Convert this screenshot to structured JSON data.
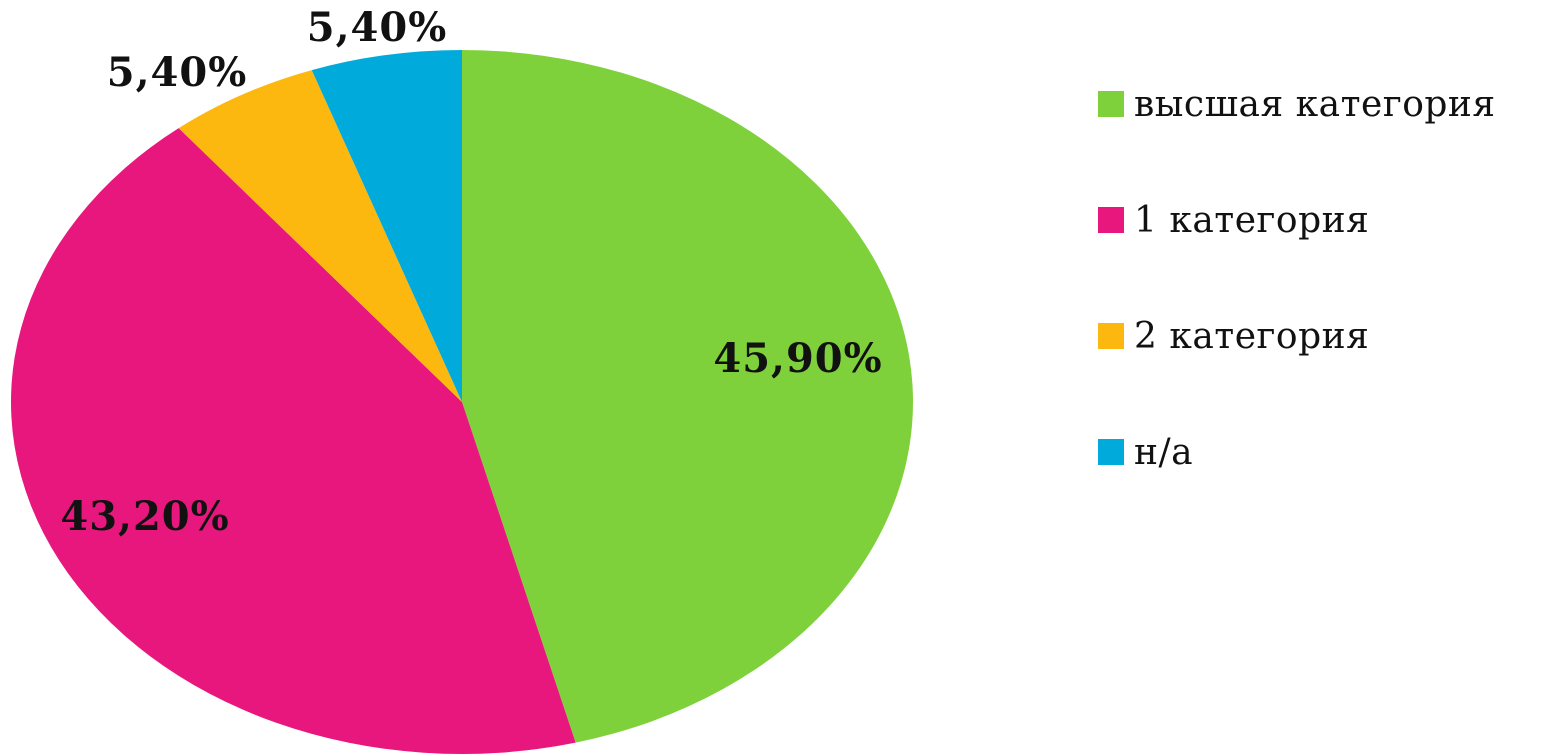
{
  "chart_data": {
    "type": "pie",
    "title": "",
    "categories": [
      "высшая категория",
      "1 категория",
      "2 категория",
      "н/а"
    ],
    "values": [
      45.9,
      43.2,
      5.4,
      5.4
    ],
    "data_labels": [
      "45,90%",
      "43,20%",
      "5,40%",
      "5,40%"
    ],
    "colors": [
      "#7fd13b",
      "#e8177d",
      "#fcb80f",
      "#00abdb"
    ],
    "start_angle": "12 o'clock",
    "direction": "clockwise",
    "legend_position": "right"
  },
  "legend": {
    "items": [
      {
        "label": "высшая категория",
        "color": "#7fd13b"
      },
      {
        "label": "1 категория",
        "color": "#e8177d"
      },
      {
        "label": "2 категория",
        "color": "#fcb80f"
      },
      {
        "label": "н/а",
        "color": "#00abdb"
      }
    ]
  }
}
